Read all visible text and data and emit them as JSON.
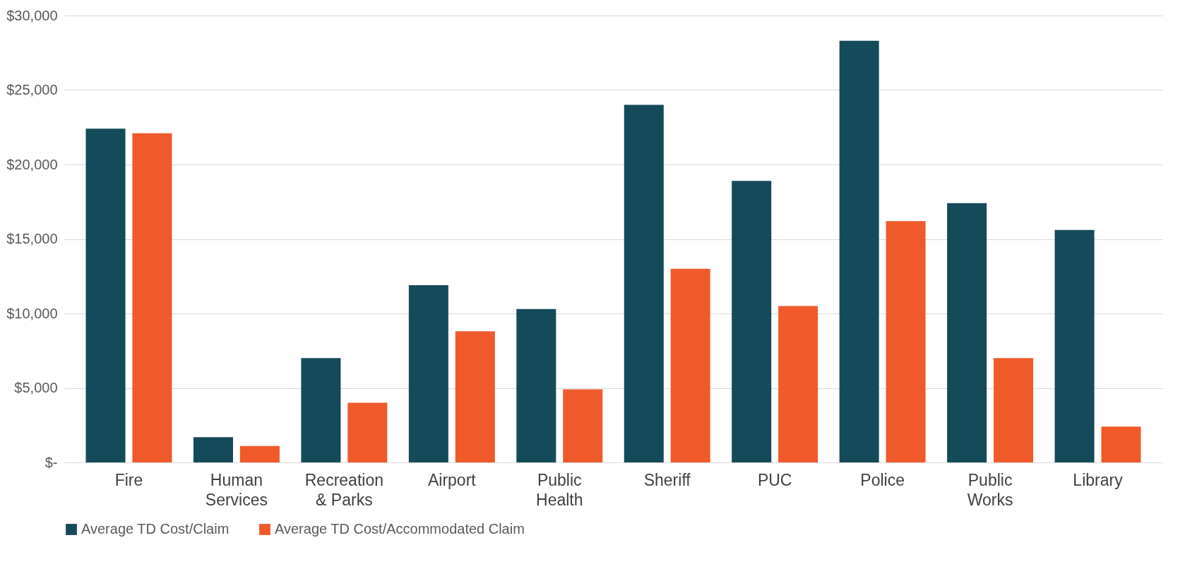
{
  "chart_data": {
    "type": "bar",
    "categories": [
      "Fire",
      "Human Services",
      "Recreation & Parks",
      "Airport",
      "Public Health",
      "Sheriff",
      "PUC",
      "Police",
      "Public Works",
      "Library"
    ],
    "series": [
      {
        "name": "Average TD Cost/Claim",
        "color": "#154a5b",
        "values": [
          22400,
          1700,
          7000,
          11900,
          10300,
          24000,
          18900,
          28300,
          17400,
          15600
        ]
      },
      {
        "name": "Average TD Cost/Accommodated Claim",
        "color": "#f05a2b",
        "values": [
          22100,
          1100,
          4000,
          8800,
          4900,
          13000,
          10500,
          16200,
          7000,
          2400
        ]
      }
    ],
    "ylim": [
      0,
      30000
    ],
    "yticks": [
      {
        "value": 0,
        "label": "$-"
      },
      {
        "value": 5000,
        "label": "$5,000"
      },
      {
        "value": 10000,
        "label": "$10,000"
      },
      {
        "value": 15000,
        "label": "$15,000"
      },
      {
        "value": 20000,
        "label": "$20,000"
      },
      {
        "value": 25000,
        "label": "$25,000"
      },
      {
        "value": 30000,
        "label": "$30,000"
      }
    ],
    "grid": "y",
    "legend": "bottom"
  }
}
